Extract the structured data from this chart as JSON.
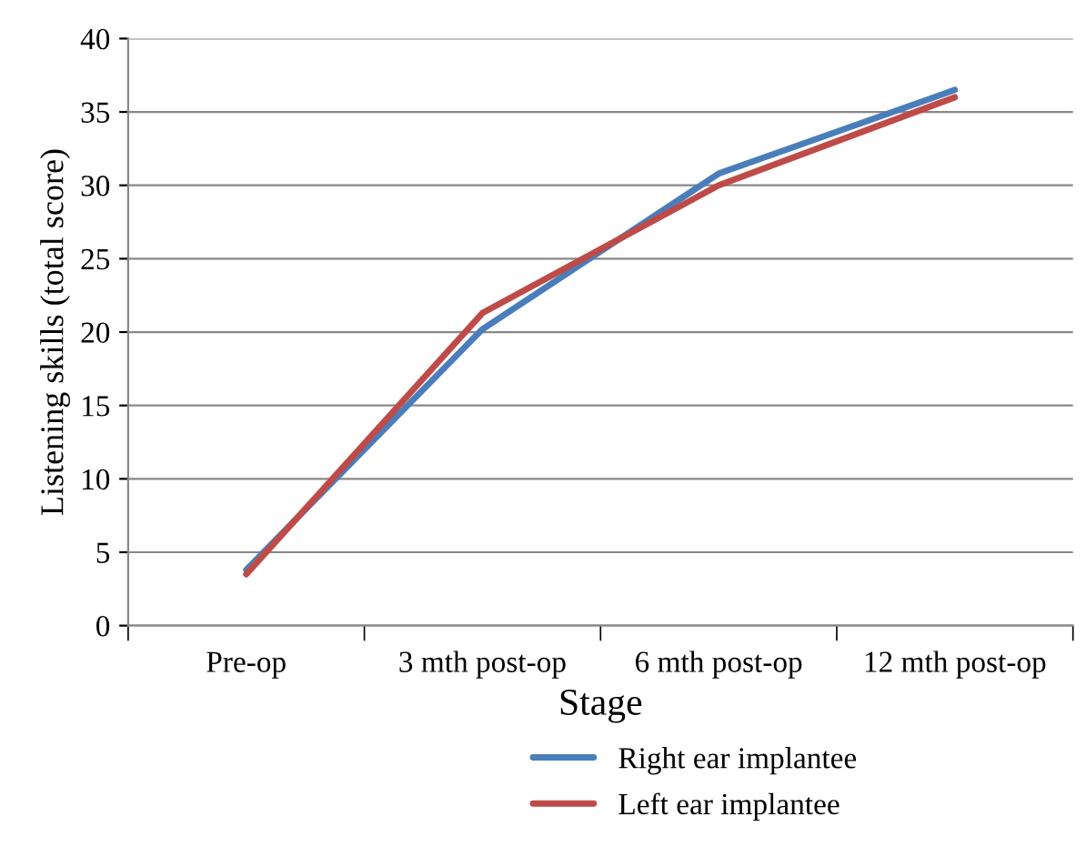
{
  "chart_data": {
    "type": "line",
    "xlabel": "Stage",
    "ylabel": "Listening skills (total score)",
    "categories": [
      "Pre-op",
      "3 mth post-op",
      "6 mth post-op",
      "12 mth post-op"
    ],
    "series": [
      {
        "name": "Right ear implantee",
        "color": "#4a7ebb",
        "values": [
          3.8,
          20.2,
          30.8,
          36.5
        ]
      },
      {
        "name": "Left ear implantee",
        "color": "#be4b48",
        "values": [
          3.5,
          21.3,
          30.0,
          36.0
        ]
      }
    ],
    "ylim": [
      0,
      40
    ],
    "yticks": [
      0,
      5,
      10,
      15,
      20,
      25,
      30,
      35,
      40
    ],
    "grid": "y",
    "legend": "bottom"
  }
}
